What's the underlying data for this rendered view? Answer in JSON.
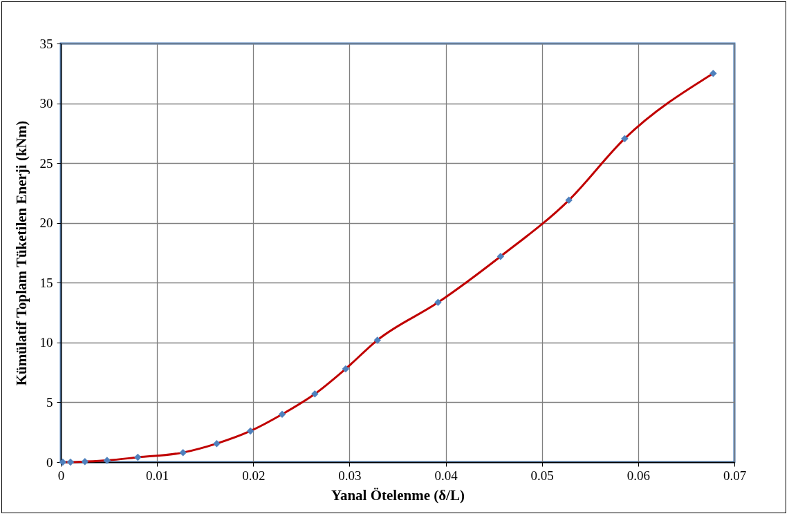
{
  "chart_data": {
    "type": "line",
    "xlabel": "Yanal Ötelenme (δ/L)",
    "ylabel": "Kümülatif Toplam Tüketilen Enerji (kNm)",
    "x": [
      0.0002,
      0.001,
      0.0025,
      0.0048,
      0.008,
      0.0127,
      0.0162,
      0.0197,
      0.023,
      0.0264,
      0.0296,
      0.0329,
      0.0392,
      0.0457,
      0.0528,
      0.0586,
      0.0678
    ],
    "series": [
      {
        "color": "#c00000",
        "marker": "none",
        "values": [
          0,
          0,
          0.05,
          0.15,
          0.4,
          0.8,
          1.55,
          2.6,
          4.0,
          5.7,
          7.8,
          10.2,
          13.35,
          17.2,
          21.9,
          27.05,
          32.5
        ]
      },
      {
        "type": "scatter",
        "marker": "diamond",
        "color": "#4f81bd",
        "values": [
          0,
          0,
          0.05,
          0.15,
          0.4,
          0.8,
          1.55,
          2.6,
          4.0,
          5.7,
          7.8,
          10.2,
          13.35,
          17.2,
          21.9,
          27.05,
          32.5
        ]
      }
    ],
    "line_style": "solid",
    "grid": true,
    "xlim": [
      0,
      0.07
    ],
    "xticks": [
      0,
      0.01,
      0.02,
      0.03,
      0.04,
      0.05,
      0.06,
      0.07
    ],
    "ylim": [
      0,
      35
    ],
    "yticks": [
      0,
      5,
      10,
      15,
      20,
      25,
      30,
      35
    ]
  }
}
